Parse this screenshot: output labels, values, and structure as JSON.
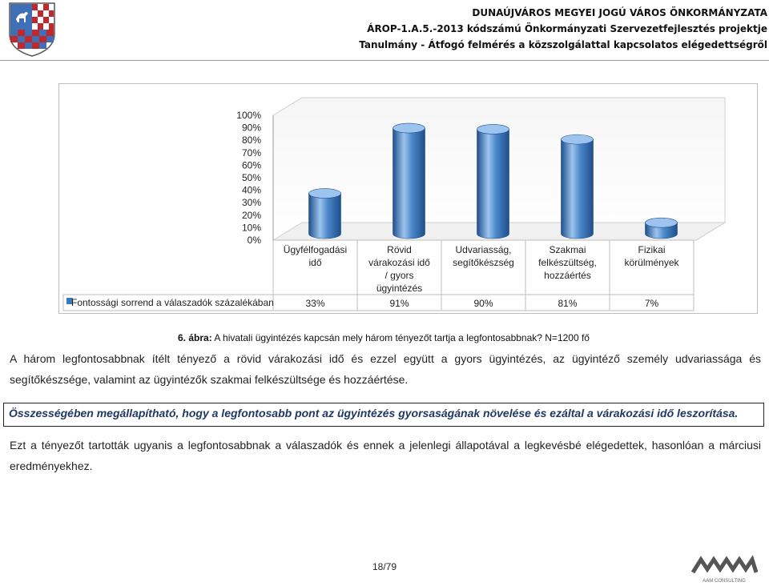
{
  "header": {
    "line1": "DUNAÚJVÁROS MEGYEI JOGÚ VÁROS ÖNKORMÁNYZATA",
    "line2": "ÁROP-1.A.5.-2013 kódszámú Önkormányzati Szervezetfejlesztés projektje",
    "line3": "Tanulmány - Átfogó felmérés a közszolgálattal kapcsolatos elégedettségről"
  },
  "chart_data": {
    "type": "bar",
    "categories": [
      [
        "Ügyfélfogadási",
        "idő"
      ],
      [
        "Rövid",
        "várakozási idő",
        "/ gyors",
        "ügyintézés"
      ],
      [
        "Udvariasság,",
        "segítőkészség"
      ],
      [
        "Szakmai",
        "felkészültség,",
        "hozzáértés"
      ],
      [
        "Fizikai",
        "körülmények"
      ]
    ],
    "series": [
      {
        "name": "Fontossági sorrend a válaszadók százalékában",
        "values": [
          33,
          91,
          90,
          81,
          7
        ],
        "labels": [
          "33%",
          "91%",
          "90%",
          "81%",
          "7%"
        ]
      }
    ],
    "ylim": [
      0,
      100
    ],
    "yticks": [
      "0%",
      "10%",
      "20%",
      "30%",
      "40%",
      "50%",
      "60%",
      "70%",
      "80%",
      "90%",
      "100%"
    ],
    "style": "3d-cylinder",
    "legend": "data-table-below",
    "grid": false,
    "colors": {
      "bar": "#4a86c8",
      "bar_dark": "#1f4f8a",
      "bar_light": "#9cc4ee",
      "legend_key": "#3a78c0"
    }
  },
  "caption": {
    "label": "6. ábra:",
    "text": " A hivatali ügyintézés kapcsán mely három tényezőt tartja a legfontosabbnak?  N=1200 fő"
  },
  "body": {
    "paragraph1": "A három legfontosabbnak ítélt tényező a rövid várakozási idő és ezzel együtt a gyors ügyintézés, az ügyintéző személy udvariassága és segítőkészsége, valamint az ügyintézők szakmai felkészültsége és hozzáértése.",
    "highlight": "Összességében megállapítható, hogy a legfontosabb pont az ügyintézés gyorsaságának növelése és ezáltal a várakozási idő leszorítása.",
    "paragraph2": "Ezt a tényezőt tartották ugyanis a legfontosabbnak a válaszadók és ennek a jelenlegi állapotával a legkevésbé elégedettek, hasonlóan a márciusi eredményekhez."
  },
  "footer": {
    "page": "18/79",
    "logo_text": "AAM CONSULTING"
  },
  "colors": {
    "highlight_text": "#1f3864",
    "crest_blue": "#3f6fb5",
    "crest_red": "#c0282d"
  }
}
